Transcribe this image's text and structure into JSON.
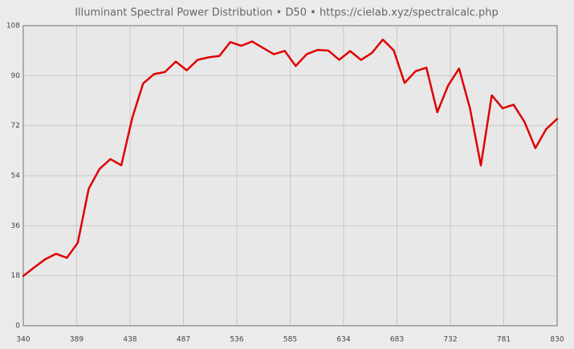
{
  "chart_data": {
    "type": "line",
    "title": "Illuminant Spectral Power Distribution  •  D50  •  https://cielab.xyz/spectralcalc.php",
    "x": [
      340,
      350,
      360,
      370,
      380,
      390,
      400,
      410,
      420,
      430,
      440,
      450,
      460,
      470,
      480,
      490,
      500,
      510,
      520,
      530,
      540,
      550,
      560,
      570,
      580,
      590,
      600,
      610,
      620,
      630,
      640,
      650,
      660,
      670,
      680,
      690,
      700,
      710,
      720,
      730,
      740,
      750,
      760,
      770,
      780,
      790,
      800,
      810,
      820,
      830
    ],
    "series": [
      {
        "name": "D50",
        "color": "#e00000",
        "values": [
          17.92,
          20.98,
          23.91,
          25.89,
          24.45,
          29.83,
          49.25,
          56.45,
          59.97,
          57.76,
          74.77,
          87.19,
          90.56,
          91.32,
          95.07,
          91.93,
          95.7,
          96.59,
          97.11,
          102.1,
          100.75,
          102.32,
          100.0,
          97.74,
          98.92,
          93.5,
          97.69,
          99.27,
          99.04,
          95.72,
          98.86,
          95.67,
          98.19,
          103.0,
          99.13,
          87.38,
          91.6,
          92.89,
          76.85,
          86.51,
          92.58,
          78.23,
          57.69,
          82.92,
          78.27,
          79.55,
          73.4,
          63.92,
          70.78,
          74.44
        ]
      }
    ],
    "xlim": [
      340,
      830
    ],
    "xticks": [
      340,
      389,
      438,
      487,
      536,
      585,
      634,
      683,
      732,
      781,
      830
    ],
    "ylim": [
      0,
      108
    ],
    "yticks": [
      0,
      18,
      36,
      54,
      72,
      90,
      108
    ],
    "grid": true
  }
}
